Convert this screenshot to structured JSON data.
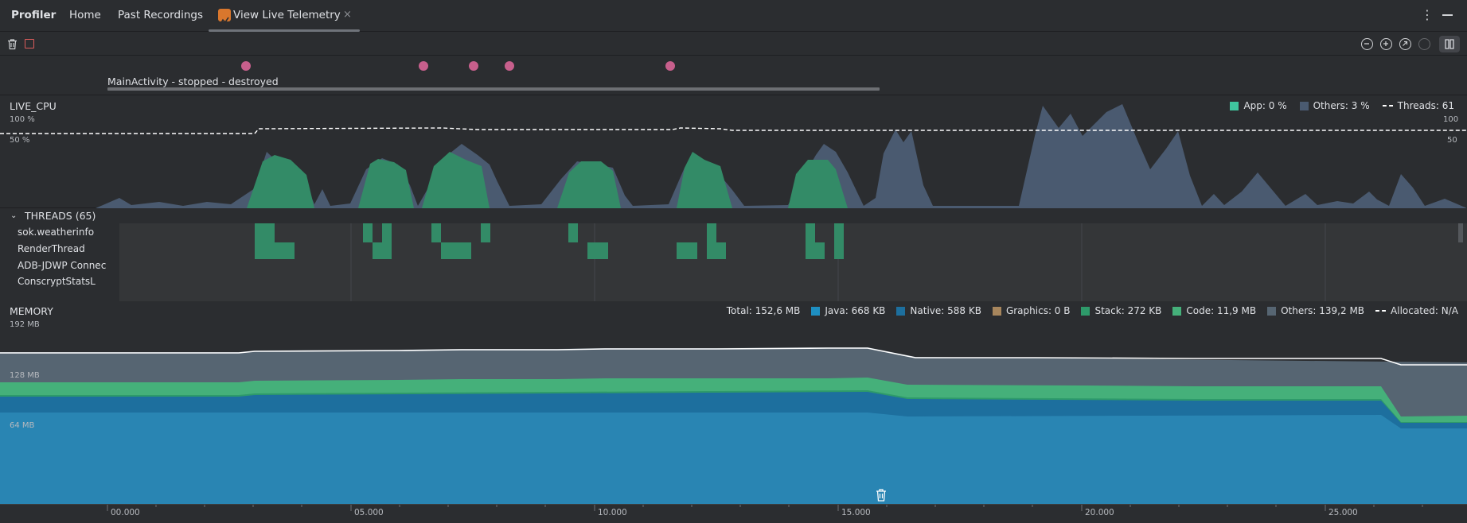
{
  "tabbar": {
    "app_title": "Profiler",
    "tabs": [
      {
        "label": "Home"
      },
      {
        "label": "Past Recordings"
      },
      {
        "label": "View Live Telemetry",
        "active": true
      }
    ],
    "close_glyph": "×",
    "more_glyph": "⋮"
  },
  "toolbar": {
    "icons": [
      "trash-icon",
      "stop-icon",
      "zoom-out-icon",
      "zoom-in-icon",
      "reset-zoom-icon",
      "attach-icon",
      "pause-icon"
    ]
  },
  "events": {
    "activity_label": "MainActivity - stopped - destroyed"
  },
  "cpu": {
    "title": "LIVE_CPU",
    "axis_top_left": "100 %",
    "axis_mid_left": "50 %",
    "axis_top_right": "100",
    "axis_mid_right": "50",
    "legend": [
      {
        "label": "App: 0 %",
        "color": "#3fc59e"
      },
      {
        "label": "Others: 3 %",
        "color": "#4a5a70"
      },
      {
        "label": "Threads: 61",
        "style": "dashed",
        "color": "#ffffff"
      }
    ]
  },
  "threads": {
    "title": "THREADS (65)",
    "names": [
      "sok.weatherinfo",
      "RenderThread",
      "ADB-JDWP Connec",
      "ConscryptStatsL"
    ]
  },
  "memory": {
    "title": "MEMORY",
    "axis": [
      "192 MB",
      "128 MB",
      "64 MB"
    ],
    "legend": [
      {
        "label": "Total: 152,6 MB"
      },
      {
        "label": "Java: 668 KB",
        "color": "#1e8fc2"
      },
      {
        "label": "Native: 588 KB",
        "color": "#1d6f9e"
      },
      {
        "label": "Graphics: 0 B",
        "color": "#a7865d"
      },
      {
        "label": "Stack: 272 KB",
        "color": "#2e9a6a"
      },
      {
        "label": "Code: 11,9 MB",
        "color": "#45b07a"
      },
      {
        "label": "Others: 139,2 MB",
        "color": "#566572"
      },
      {
        "label": "Allocated: N/A",
        "style": "dashed",
        "color": "#ffffff"
      }
    ]
  },
  "timeaxis": {
    "ticks": [
      "00.000",
      "05.000",
      "10.000",
      "15.000",
      "20.000",
      "25.000"
    ]
  }
}
